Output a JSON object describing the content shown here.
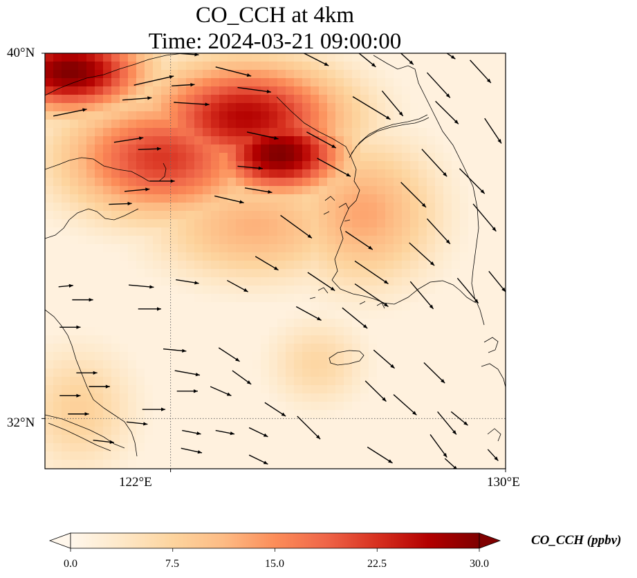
{
  "figure": {
    "title_line1": "CO_CCH at 4km",
    "title_line2": "Time: 2024-03-21 09:00:00"
  },
  "map": {
    "variable": "CO_CCH",
    "height": "4km",
    "time": "2024-03-21 09:00:00",
    "lon_range": [
      119,
      130
    ],
    "lat_range": [
      30.9,
      40
    ],
    "lat_ticks": [
      {
        "value": 40,
        "label": "40°N"
      },
      {
        "value": 32,
        "label": "32°N"
      }
    ],
    "lon_ticks": [
      {
        "value": 122,
        "label": "122°E"
      },
      {
        "value": 130,
        "label": "130°E"
      }
    ],
    "gridlines": {
      "lon": [
        122
      ],
      "lat": [
        32
      ],
      "style": "dotted"
    },
    "concentration_hotspots": [
      {
        "lon": 119.6,
        "lat": 39.6,
        "value": 30,
        "rlon": 1.8,
        "rlat": 0.9
      },
      {
        "lon": 124.6,
        "lat": 37.8,
        "value": 30,
        "rlon": 1.6,
        "rlat": 0.9
      },
      {
        "lon": 123.8,
        "lat": 38.6,
        "value": 26,
        "rlon": 2.4,
        "rlat": 1.2
      },
      {
        "lon": 121.8,
        "lat": 37.7,
        "value": 22,
        "rlon": 2.4,
        "rlat": 1.3
      },
      {
        "lon": 126.6,
        "lat": 36.5,
        "value": 13,
        "rlon": 1.8,
        "rlat": 1.6
      },
      {
        "lon": 124.0,
        "lat": 36.2,
        "value": 12,
        "rlon": 2.4,
        "rlat": 1.2
      },
      {
        "lon": 119.8,
        "lat": 32.2,
        "value": 8,
        "rlon": 1.4,
        "rlat": 1.4
      },
      {
        "lon": 125.5,
        "lat": 33.2,
        "value": 7,
        "rlon": 1.2,
        "rlat": 1.0
      }
    ],
    "wind_vectors": [
      [
        122.3,
        39.99,
        0.75,
        -0.05
      ],
      [
        121.6,
        39.4,
        0.95,
        0.2
      ],
      [
        122.3,
        39.3,
        0.55,
        0.03
      ],
      [
        121.2,
        39.0,
        0.7,
        0.05
      ],
      [
        122.5,
        38.9,
        0.85,
        -0.05
      ],
      [
        119.6,
        38.7,
        0.8,
        0.15
      ],
      [
        121.0,
        38.1,
        0.7,
        0.1
      ],
      [
        121.5,
        37.9,
        0.55,
        0.02
      ],
      [
        121.8,
        37.2,
        0.6,
        0
      ],
      [
        121.2,
        37.0,
        0.6,
        0.05
      ],
      [
        120.8,
        36.7,
        0.55,
        0.02
      ],
      [
        123.5,
        39.6,
        0.85,
        -0.2
      ],
      [
        124.0,
        39.2,
        0.8,
        -0.1
      ],
      [
        124.2,
        38.2,
        0.75,
        -0.15
      ],
      [
        123.9,
        37.5,
        0.6,
        -0.05
      ],
      [
        124.1,
        37.0,
        0.65,
        -0.1
      ],
      [
        123.4,
        36.8,
        0.7,
        -0.15
      ],
      [
        125.4,
        39.9,
        0.75,
        -0.35
      ],
      [
        126.8,
        38.8,
        0.9,
        -0.5
      ],
      [
        125.6,
        38.1,
        0.7,
        -0.35
      ],
      [
        125.9,
        37.5,
        0.8,
        -0.4
      ],
      [
        125.0,
        36.2,
        0.75,
        -0.5
      ],
      [
        127.5,
        40.0,
        0.6,
        -0.5
      ],
      [
        126.5,
        40.0,
        0.8,
        -0.6
      ],
      [
        128.6,
        40.0,
        0.4,
        -0.25
      ],
      [
        129.4,
        39.6,
        0.5,
        -0.5
      ],
      [
        128.4,
        39.3,
        0.55,
        -0.55
      ],
      [
        127.3,
        38.9,
        0.5,
        -0.55
      ],
      [
        128.6,
        38.7,
        0.55,
        -0.5
      ],
      [
        129.7,
        38.3,
        0.4,
        -0.55
      ],
      [
        128.3,
        37.6,
        0.6,
        -0.6
      ],
      [
        127.8,
        36.9,
        0.6,
        -0.55
      ],
      [
        128.4,
        36.1,
        0.55,
        -0.55
      ],
      [
        129.2,
        37.2,
        0.6,
        -0.55
      ],
      [
        129.5,
        36.4,
        0.55,
        -0.6
      ],
      [
        126.5,
        35.9,
        0.65,
        -0.4
      ],
      [
        126.8,
        35.2,
        0.8,
        -0.5
      ],
      [
        125.6,
        35.0,
        0.65,
        -0.4
      ],
      [
        126.8,
        34.7,
        0.8,
        -0.5
      ],
      [
        128.0,
        35.6,
        0.6,
        -0.5
      ],
      [
        129.1,
        34.8,
        0.5,
        -0.55
      ],
      [
        129.8,
        35.0,
        0.4,
        -0.45
      ],
      [
        128.0,
        34.7,
        0.55,
        -0.6
      ],
      [
        126.4,
        34.2,
        0.6,
        -0.45
      ],
      [
        125.3,
        34.3,
        0.6,
        -0.3
      ],
      [
        127.1,
        33.3,
        0.5,
        -0.4
      ],
      [
        128.3,
        33.0,
        0.5,
        -0.45
      ],
      [
        126.9,
        32.6,
        0.5,
        -0.45
      ],
      [
        127.6,
        32.3,
        0.55,
        -0.45
      ],
      [
        128.9,
        32.0,
        0.4,
        -0.3
      ],
      [
        128.6,
        31.9,
        0.45,
        -0.5
      ],
      [
        128.4,
        31.4,
        0.4,
        -0.5
      ],
      [
        127.0,
        31.2,
        0.6,
        -0.35
      ],
      [
        128.7,
        31.0,
        0.3,
        -0.25
      ],
      [
        129.7,
        31.2,
        0.25,
        -0.25
      ],
      [
        124.3,
        35.4,
        0.55,
        -0.3
      ],
      [
        123.6,
        34.9,
        0.5,
        -0.25
      ],
      [
        122.4,
        35.0,
        0.55,
        -0.08
      ],
      [
        121.3,
        34.9,
        0.6,
        -0.05
      ],
      [
        121.5,
        34.4,
        0.55,
        0
      ],
      [
        119.9,
        34.6,
        0.5,
        0
      ],
      [
        119.6,
        34.0,
        0.5,
        0
      ],
      [
        122.1,
        33.5,
        0.55,
        -0.05
      ],
      [
        122.4,
        33.0,
        0.6,
        -0.1
      ],
      [
        123.4,
        33.4,
        0.5,
        -0.3
      ],
      [
        123.7,
        32.9,
        0.45,
        -0.3
      ],
      [
        123.2,
        32.6,
        0.5,
        -0.2
      ],
      [
        124.5,
        32.2,
        0.5,
        -0.3
      ],
      [
        125.3,
        31.8,
        0.55,
        -0.5
      ],
      [
        124.1,
        31.7,
        0.45,
        -0.2
      ],
      [
        123.3,
        31.7,
        0.45,
        -0.08
      ],
      [
        122.5,
        31.7,
        0.45,
        -0.08
      ],
      [
        121.2,
        31.9,
        0.5,
        -0.05
      ],
      [
        120.3,
        32.7,
        0.5,
        0
      ],
      [
        119.6,
        32.5,
        0.5,
        0
      ],
      [
        120.0,
        33.0,
        0.5,
        0
      ],
      [
        121.6,
        32.2,
        0.55,
        0
      ],
      [
        122.5,
        31.3,
        0.5,
        -0.1
      ],
      [
        120.4,
        31.5,
        0.5,
        -0.05
      ],
      [
        119.8,
        32.1,
        0.5,
        0
      ],
      [
        124.1,
        31.1,
        0.45,
        -0.2
      ],
      [
        122.4,
        32.6,
        0.5,
        0
      ],
      [
        119.5,
        34.9,
        0.35,
        0.03
      ]
    ]
  },
  "colorbar": {
    "label": "CO_CCH (ppbv)",
    "colormap": [
      "#fff7ec",
      "#fee8c8",
      "#fdd49e",
      "#fdbb84",
      "#fc8d59",
      "#ef6548",
      "#d7301f",
      "#b30000",
      "#7f0000"
    ],
    "min": 0,
    "max": 30,
    "ticks": [
      "0.0",
      "7.5",
      "15.0",
      "22.5",
      "30.0"
    ],
    "extend": "both"
  },
  "style": {
    "land_outline": "#000000",
    "gridline_color": "#666666",
    "arrow_color": "#000000"
  }
}
